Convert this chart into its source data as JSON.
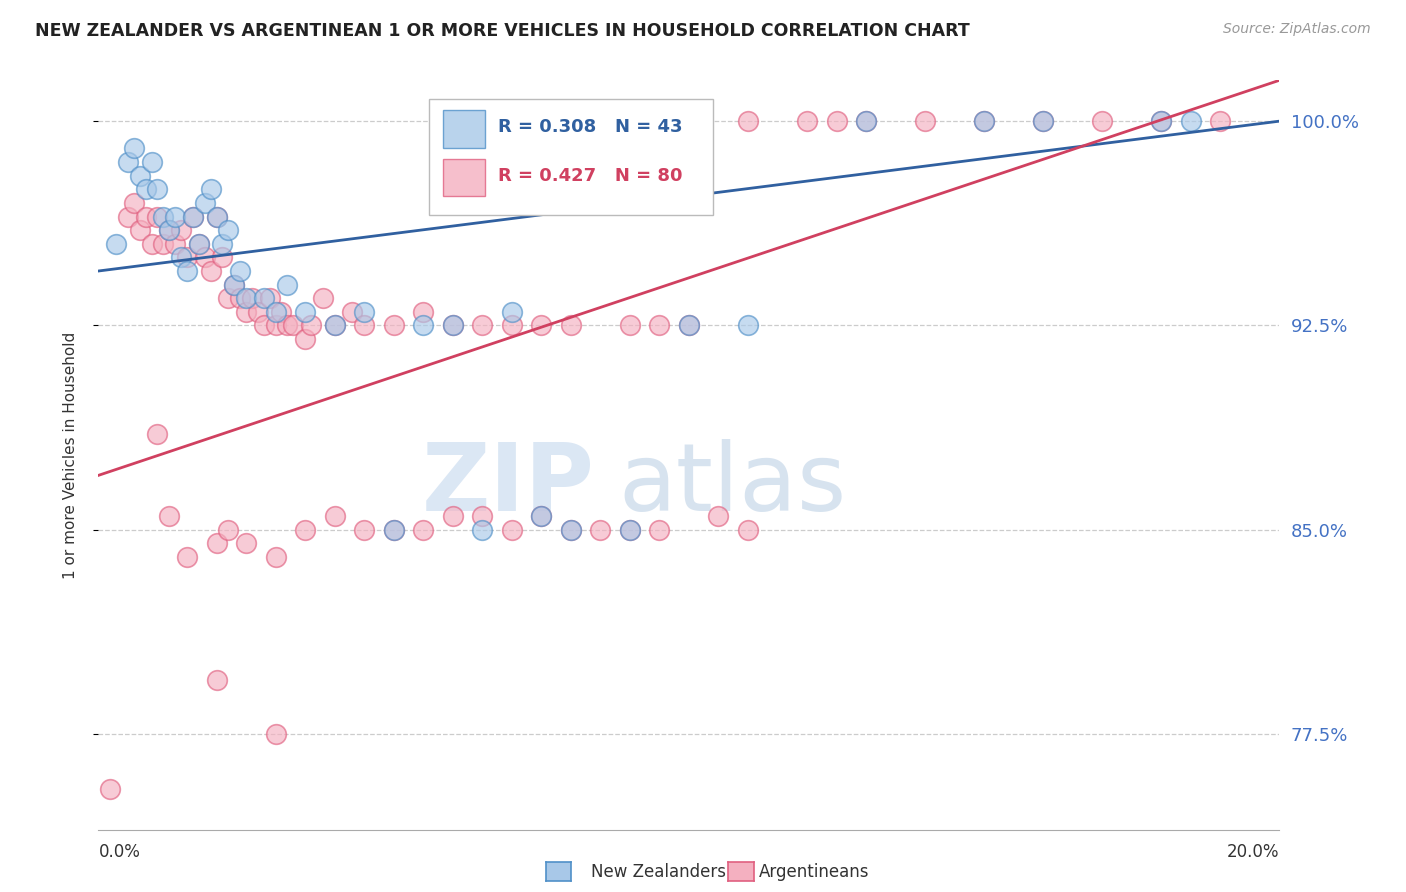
{
  "title": "NEW ZEALANDER VS ARGENTINEAN 1 OR MORE VEHICLES IN HOUSEHOLD CORRELATION CHART",
  "source": "Source: ZipAtlas.com",
  "ylabel": "1 or more Vehicles in Household",
  "xmin": 0.0,
  "xmax": 20.0,
  "ymin": 74.0,
  "ymax": 101.5,
  "yticks": [
    77.5,
    85.0,
    92.5,
    100.0
  ],
  "ytick_labels": [
    "77.5%",
    "85.0%",
    "92.5%",
    "100.0%"
  ],
  "legend_blue_r": "R = 0.308",
  "legend_blue_n": "N = 43",
  "legend_pink_r": "R = 0.427",
  "legend_pink_n": "N = 80",
  "legend_label_blue": "New Zealanders",
  "legend_label_pink": "Argentineans",
  "blue_color": "#a8c8e8",
  "pink_color": "#f4b0c0",
  "blue_edge_color": "#5090c8",
  "pink_edge_color": "#e06080",
  "blue_line_color": "#3060a0",
  "pink_line_color": "#d04060",
  "watermark_zip": "ZIP",
  "watermark_atlas": "atlas",
  "blue_scatter_x": [
    0.3,
    0.5,
    0.6,
    0.7,
    0.8,
    0.9,
    1.0,
    1.1,
    1.2,
    1.3,
    1.4,
    1.5,
    1.6,
    1.7,
    1.8,
    1.9,
    2.0,
    2.1,
    2.2,
    2.3,
    2.4,
    2.5,
    2.8,
    3.0,
    3.2,
    3.5,
    4.0,
    4.5,
    5.0,
    5.5,
    6.0,
    6.5,
    7.0,
    7.5,
    8.0,
    9.0,
    10.0,
    11.0,
    13.0,
    15.0,
    16.0,
    18.0,
    18.5
  ],
  "blue_scatter_y": [
    95.5,
    98.5,
    99.0,
    98.0,
    97.5,
    98.5,
    97.5,
    96.5,
    96.0,
    96.5,
    95.0,
    94.5,
    96.5,
    95.5,
    97.0,
    97.5,
    96.5,
    95.5,
    96.0,
    94.0,
    94.5,
    93.5,
    93.5,
    93.0,
    94.0,
    93.0,
    92.5,
    93.0,
    85.0,
    92.5,
    92.5,
    85.0,
    93.0,
    85.5,
    85.0,
    85.0,
    92.5,
    92.5,
    100.0,
    100.0,
    100.0,
    100.0,
    100.0
  ],
  "pink_scatter_x": [
    0.2,
    0.5,
    0.6,
    0.7,
    0.8,
    0.9,
    1.0,
    1.1,
    1.2,
    1.3,
    1.4,
    1.5,
    1.6,
    1.7,
    1.8,
    1.9,
    2.0,
    2.1,
    2.2,
    2.3,
    2.4,
    2.5,
    2.6,
    2.7,
    2.8,
    2.9,
    3.0,
    3.1,
    3.2,
    3.3,
    3.5,
    3.6,
    3.8,
    4.0,
    4.3,
    4.5,
    5.0,
    5.5,
    6.0,
    6.5,
    7.0,
    7.5,
    8.0,
    9.0,
    9.5,
    10.0,
    11.0,
    12.0,
    12.5,
    13.0,
    14.0,
    15.0,
    16.0,
    17.0,
    18.0,
    19.0,
    1.2,
    1.5,
    2.0,
    2.2,
    2.5,
    3.0,
    3.5,
    4.0,
    4.5,
    5.0,
    5.5,
    6.0,
    6.5,
    7.0,
    7.5,
    8.0,
    8.5,
    9.0,
    9.5,
    10.5,
    11.0,
    1.0,
    2.0,
    3.0
  ],
  "pink_scatter_y": [
    75.5,
    96.5,
    97.0,
    96.0,
    96.5,
    95.5,
    96.5,
    95.5,
    96.0,
    95.5,
    96.0,
    95.0,
    96.5,
    95.5,
    95.0,
    94.5,
    96.5,
    95.0,
    93.5,
    94.0,
    93.5,
    93.0,
    93.5,
    93.0,
    92.5,
    93.5,
    92.5,
    93.0,
    92.5,
    92.5,
    92.0,
    92.5,
    93.5,
    92.5,
    93.0,
    92.5,
    92.5,
    93.0,
    92.5,
    92.5,
    92.5,
    92.5,
    92.5,
    92.5,
    92.5,
    92.5,
    100.0,
    100.0,
    100.0,
    100.0,
    100.0,
    100.0,
    100.0,
    100.0,
    100.0,
    100.0,
    85.5,
    84.0,
    84.5,
    85.0,
    84.5,
    84.0,
    85.0,
    85.5,
    85.0,
    85.0,
    85.0,
    85.5,
    85.5,
    85.0,
    85.5,
    85.0,
    85.0,
    85.0,
    85.0,
    85.5,
    85.0,
    88.5,
    79.5,
    77.5
  ]
}
